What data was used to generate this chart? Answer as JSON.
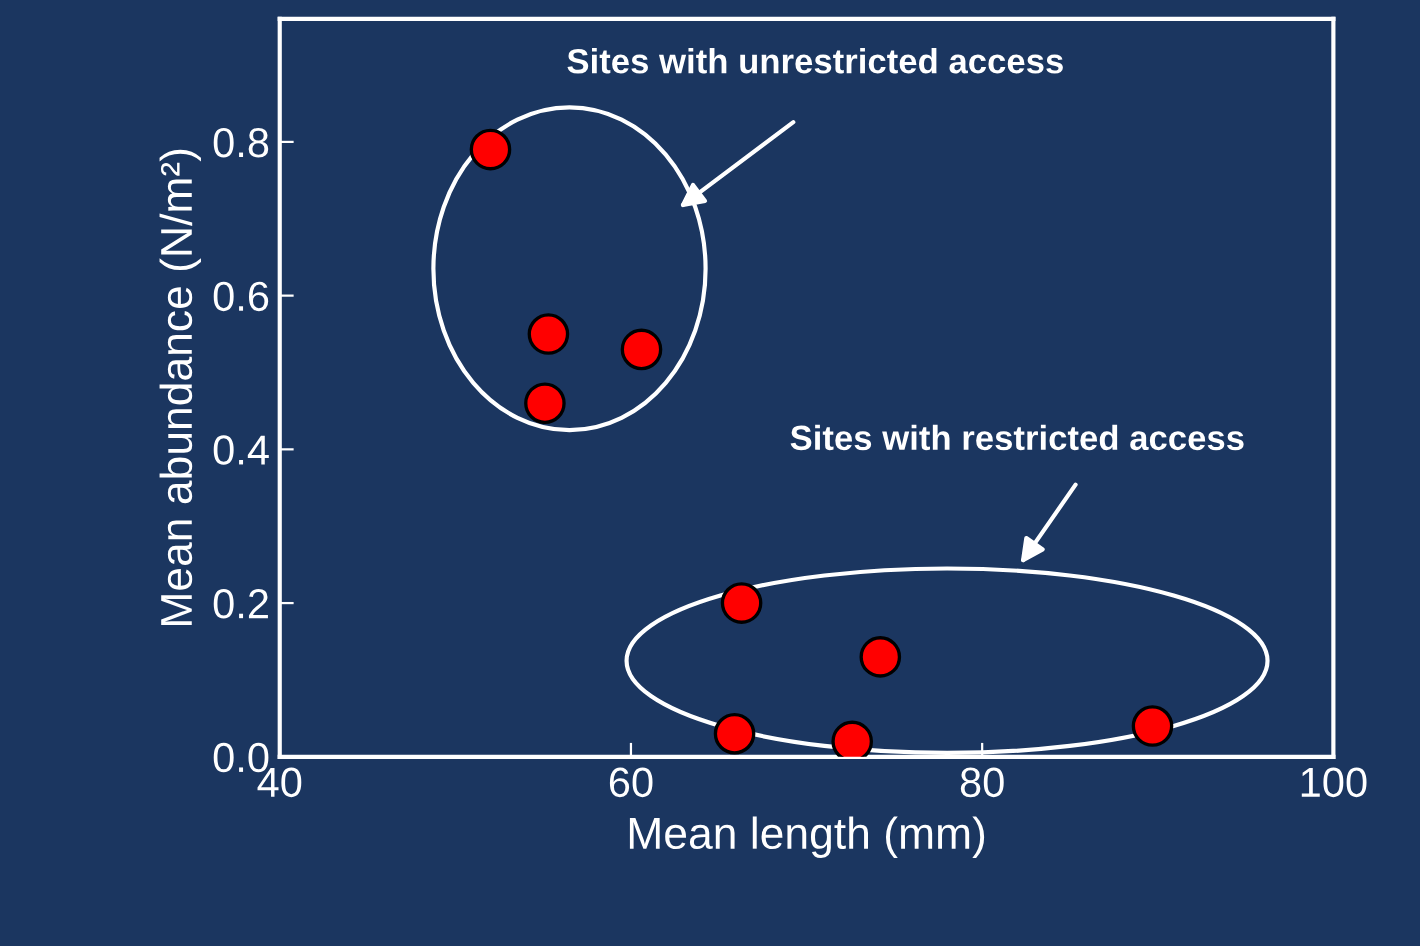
{
  "chart_data": {
    "type": "scatter",
    "xlabel": "Mean length (mm)",
    "ylabel": "Mean abundance (N/m²)",
    "x": [
      52.0,
      55.3,
      60.6,
      55.1,
      66.3,
      74.2,
      65.9,
      72.6,
      89.7
    ],
    "series": [
      {
        "color": "#ff0000",
        "values": [
          0.79,
          0.55,
          0.53,
          0.46,
          0.2,
          0.13,
          0.03,
          0.02,
          0.04
        ]
      }
    ],
    "xlim": [
      40,
      100
    ],
    "xticks": [
      40,
      60,
      80,
      100
    ],
    "ylim": [
      0,
      0.96
    ],
    "yticks": [
      {
        "value": 0,
        "label": "0.0"
      },
      0.2,
      0.4,
      0.6,
      0.8
    ],
    "marker": "circle",
    "grid": false,
    "annotations": [
      "Sites with unrestricted access",
      "Sites with restricted access"
    ]
  }
}
